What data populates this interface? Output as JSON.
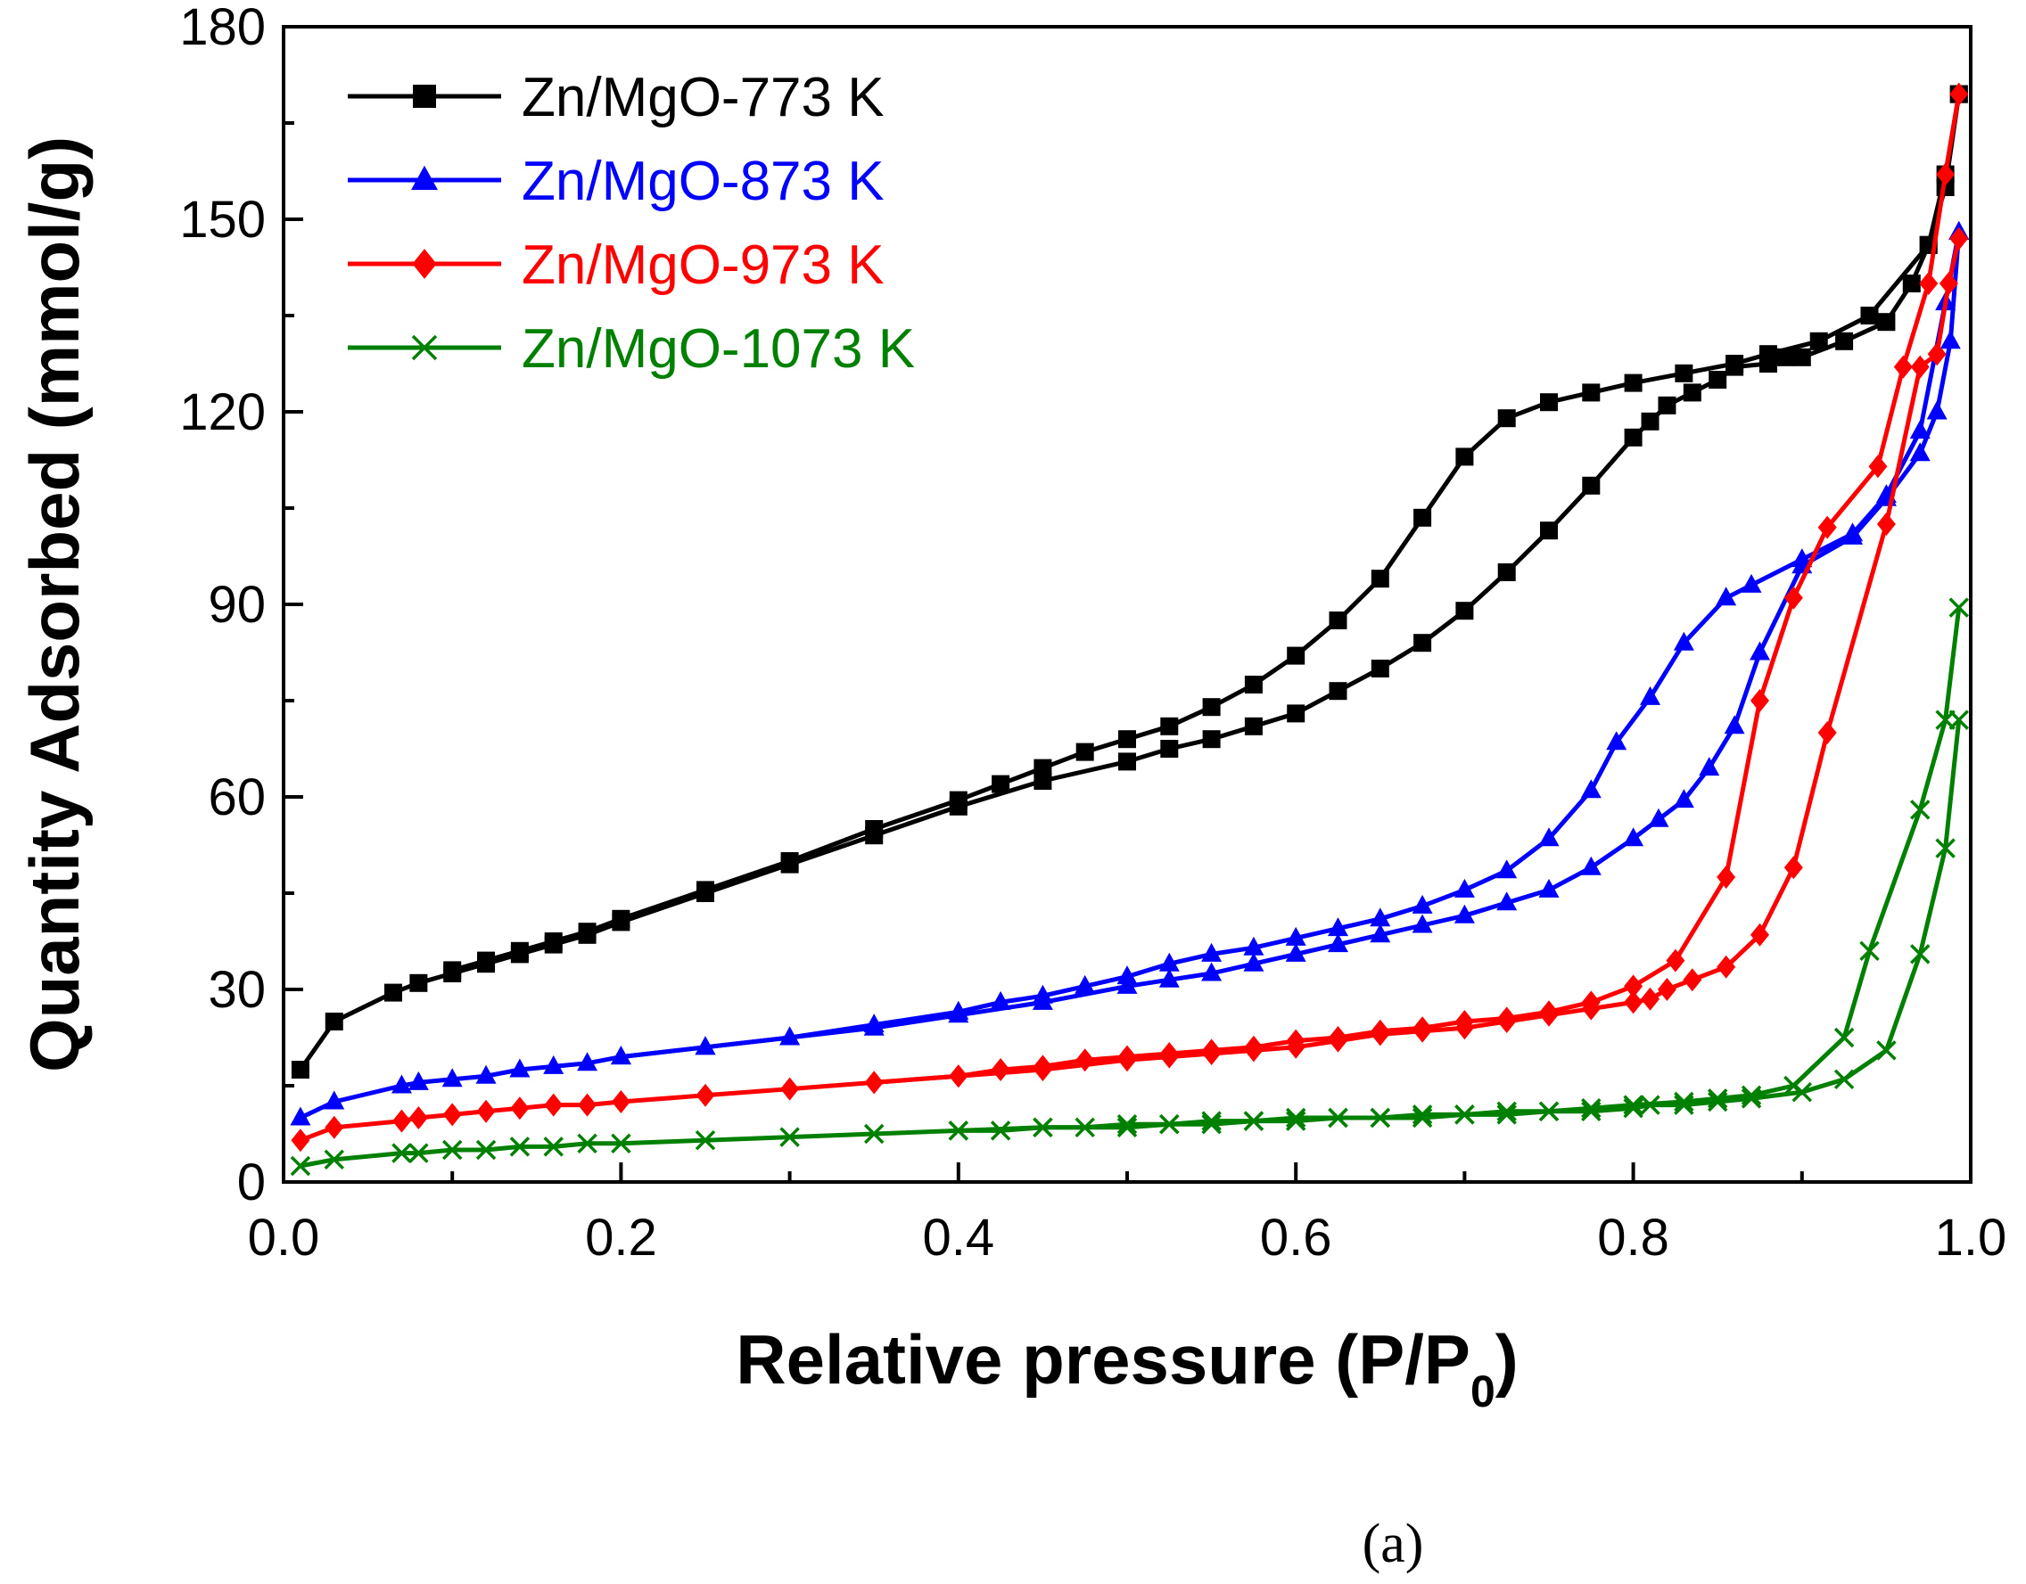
{
  "chart_data": {
    "type": "line",
    "title": "",
    "xlabel": "Relative pressure (P/P",
    "xlabel_sub": "0",
    "xlabel_end": ")",
    "ylabel": "Quantity Adsorbed (mmol/g)",
    "xlim": [
      0.0,
      1.0
    ],
    "ylim": [
      0,
      180
    ],
    "xticks": [
      "0.0",
      "0.2",
      "0.4",
      "0.6",
      "0.8",
      "1.0"
    ],
    "yticks": [
      "0",
      "30",
      "60",
      "90",
      "120",
      "150",
      "180"
    ],
    "legend_position": "top-left",
    "caption": "(a)",
    "series": [
      {
        "name": "Zn/MgO-773 K",
        "color": "#000000",
        "marker": "square",
        "adsorption": [
          [
            0.01,
            17.5
          ],
          [
            0.03,
            25
          ],
          [
            0.065,
            29.5
          ],
          [
            0.08,
            31
          ],
          [
            0.1,
            32.5
          ],
          [
            0.12,
            34
          ],
          [
            0.14,
            35.5
          ],
          [
            0.16,
            37
          ],
          [
            0.18,
            38.5
          ],
          [
            0.2,
            40.5
          ],
          [
            0.25,
            45
          ],
          [
            0.3,
            49.5
          ],
          [
            0.35,
            54
          ],
          [
            0.4,
            58.5
          ],
          [
            0.45,
            62.5
          ],
          [
            0.5,
            65.5
          ],
          [
            0.525,
            67.5
          ],
          [
            0.55,
            69
          ],
          [
            0.575,
            71
          ],
          [
            0.6,
            73
          ],
          [
            0.625,
            76.5
          ],
          [
            0.65,
            80
          ],
          [
            0.675,
            84
          ],
          [
            0.7,
            89
          ],
          [
            0.725,
            95
          ],
          [
            0.75,
            101.5
          ],
          [
            0.775,
            108.5
          ],
          [
            0.8,
            116
          ],
          [
            0.81,
            118.5
          ],
          [
            0.82,
            121
          ],
          [
            0.835,
            123
          ],
          [
            0.85,
            125
          ],
          [
            0.86,
            127
          ],
          [
            0.88,
            127.5
          ],
          [
            0.89,
            128.5
          ],
          [
            0.9,
            128.5
          ],
          [
            0.925,
            131
          ],
          [
            0.95,
            134
          ],
          [
            0.965,
            140
          ],
          [
            0.975,
            146
          ],
          [
            0.985,
            155
          ],
          [
            0.993,
            169.5
          ]
        ],
        "desorption": [
          [
            0.993,
            169.5
          ],
          [
            0.985,
            157
          ],
          [
            0.975,
            146
          ],
          [
            0.94,
            135
          ],
          [
            0.91,
            131
          ],
          [
            0.88,
            129
          ],
          [
            0.86,
            127.5
          ],
          [
            0.83,
            126
          ],
          [
            0.8,
            124.5
          ],
          [
            0.775,
            123
          ],
          [
            0.75,
            121.5
          ],
          [
            0.725,
            119
          ],
          [
            0.7,
            113
          ],
          [
            0.675,
            103.5
          ],
          [
            0.65,
            94
          ],
          [
            0.625,
            87.5
          ],
          [
            0.6,
            82
          ],
          [
            0.575,
            77.5
          ],
          [
            0.55,
            74
          ],
          [
            0.525,
            71
          ],
          [
            0.5,
            69
          ],
          [
            0.475,
            67
          ],
          [
            0.45,
            64.5
          ],
          [
            0.425,
            62
          ],
          [
            0.4,
            59.5
          ],
          [
            0.35,
            55
          ],
          [
            0.3,
            50
          ],
          [
            0.25,
            45.5
          ],
          [
            0.2,
            41
          ],
          [
            0.18,
            39
          ],
          [
            0.16,
            37.5
          ],
          [
            0.14,
            36
          ],
          [
            0.12,
            34.5
          ],
          [
            0.1,
            33
          ]
        ]
      },
      {
        "name": "Zn/MgO-873 K",
        "color": "#0000ff",
        "marker": "triangle",
        "adsorption": [
          [
            0.01,
            10
          ],
          [
            0.03,
            12.5
          ],
          [
            0.07,
            15
          ],
          [
            0.08,
            15.5
          ],
          [
            0.1,
            16
          ],
          [
            0.12,
            16.5
          ],
          [
            0.14,
            17.5
          ],
          [
            0.16,
            18
          ],
          [
            0.18,
            18.5
          ],
          [
            0.2,
            19.5
          ],
          [
            0.25,
            21
          ],
          [
            0.3,
            22.5
          ],
          [
            0.35,
            24
          ],
          [
            0.4,
            26
          ],
          [
            0.45,
            28
          ],
          [
            0.5,
            30.5
          ],
          [
            0.525,
            31.5
          ],
          [
            0.55,
            32.5
          ],
          [
            0.575,
            34
          ],
          [
            0.6,
            35.5
          ],
          [
            0.625,
            37
          ],
          [
            0.65,
            38.5
          ],
          [
            0.675,
            40
          ],
          [
            0.7,
            41.5
          ],
          [
            0.725,
            43.5
          ],
          [
            0.75,
            45.5
          ],
          [
            0.775,
            49
          ],
          [
            0.8,
            53.5
          ],
          [
            0.815,
            56.5
          ],
          [
            0.83,
            59.5
          ],
          [
            0.845,
            64.5
          ],
          [
            0.86,
            71
          ],
          [
            0.875,
            82.5
          ],
          [
            0.9,
            96
          ],
          [
            0.93,
            100.5
          ],
          [
            0.95,
            106.5
          ],
          [
            0.97,
            113.5
          ],
          [
            0.98,
            120
          ],
          [
            0.988,
            131
          ],
          [
            0.993,
            148
          ]
        ],
        "desorption": [
          [
            0.993,
            148
          ],
          [
            0.985,
            137
          ],
          [
            0.97,
            117
          ],
          [
            0.95,
            107
          ],
          [
            0.93,
            101
          ],
          [
            0.9,
            97
          ],
          [
            0.87,
            93
          ],
          [
            0.855,
            91
          ],
          [
            0.83,
            84
          ],
          [
            0.81,
            75.5
          ],
          [
            0.79,
            68.5
          ],
          [
            0.775,
            61
          ],
          [
            0.75,
            53.5
          ],
          [
            0.725,
            48.5
          ],
          [
            0.7,
            45.5
          ],
          [
            0.675,
            43
          ],
          [
            0.65,
            41
          ],
          [
            0.625,
            39.5
          ],
          [
            0.6,
            38
          ],
          [
            0.575,
            36.5
          ],
          [
            0.55,
            35.5
          ],
          [
            0.525,
            34
          ],
          [
            0.5,
            32
          ],
          [
            0.475,
            30.5
          ],
          [
            0.45,
            29
          ],
          [
            0.425,
            28
          ],
          [
            0.4,
            26.5
          ],
          [
            0.35,
            24.5
          ],
          [
            0.3,
            22.5
          ],
          [
            0.25,
            21
          ],
          [
            0.2,
            19.5
          ]
        ]
      },
      {
        "name": "Zn/MgO-973 K",
        "color": "#ff0000",
        "marker": "diamond",
        "adsorption": [
          [
            0.01,
            6.5
          ],
          [
            0.03,
            8.5
          ],
          [
            0.07,
            9.5
          ],
          [
            0.08,
            10
          ],
          [
            0.1,
            10.5
          ],
          [
            0.12,
            11
          ],
          [
            0.14,
            11.5
          ],
          [
            0.16,
            12
          ],
          [
            0.18,
            12
          ],
          [
            0.2,
            12.5
          ],
          [
            0.25,
            13.5
          ],
          [
            0.3,
            14.5
          ],
          [
            0.35,
            15.5
          ],
          [
            0.4,
            16.5
          ],
          [
            0.45,
            17.5
          ],
          [
            0.5,
            19
          ],
          [
            0.525,
            19.5
          ],
          [
            0.55,
            20
          ],
          [
            0.575,
            20.5
          ],
          [
            0.6,
            21
          ],
          [
            0.625,
            22
          ],
          [
            0.65,
            23
          ],
          [
            0.675,
            23.5
          ],
          [
            0.7,
            24
          ],
          [
            0.725,
            25
          ],
          [
            0.75,
            26
          ],
          [
            0.775,
            27
          ],
          [
            0.8,
            28
          ],
          [
            0.81,
            28.5
          ],
          [
            0.82,
            30
          ],
          [
            0.835,
            31.5
          ],
          [
            0.855,
            33.5
          ],
          [
            0.875,
            38.5
          ],
          [
            0.895,
            49
          ],
          [
            0.915,
            70
          ],
          [
            0.95,
            102.5
          ],
          [
            0.97,
            127
          ],
          [
            0.98,
            129
          ],
          [
            0.987,
            140
          ],
          [
            0.993,
            147
          ]
        ],
        "desorption": [
          [
            0.993,
            169.5
          ],
          [
            0.985,
            157
          ],
          [
            0.975,
            140
          ],
          [
            0.96,
            127
          ],
          [
            0.945,
            111.5
          ],
          [
            0.915,
            102
          ],
          [
            0.895,
            91
          ],
          [
            0.875,
            75
          ],
          [
            0.855,
            47.5
          ],
          [
            0.825,
            34.5
          ],
          [
            0.8,
            30.5
          ],
          [
            0.775,
            28
          ],
          [
            0.75,
            26.5
          ],
          [
            0.725,
            25.5
          ],
          [
            0.7,
            25
          ],
          [
            0.675,
            24
          ],
          [
            0.65,
            23.5
          ],
          [
            0.625,
            22.5
          ],
          [
            0.6,
            22
          ],
          [
            0.575,
            21
          ],
          [
            0.55,
            20.5
          ],
          [
            0.525,
            20
          ],
          [
            0.5,
            19.5
          ],
          [
            0.475,
            19
          ],
          [
            0.45,
            18
          ],
          [
            0.425,
            17.5
          ],
          [
            0.4,
            16.5
          ],
          [
            0.35,
            15.5
          ]
        ]
      },
      {
        "name": "Zn/MgO-1073 K",
        "color": "#008000",
        "marker": "x",
        "adsorption": [
          [
            0.01,
            2.5
          ],
          [
            0.03,
            3.5
          ],
          [
            0.07,
            4.5
          ],
          [
            0.08,
            4.5
          ],
          [
            0.1,
            5
          ],
          [
            0.12,
            5
          ],
          [
            0.14,
            5.5
          ],
          [
            0.16,
            5.5
          ],
          [
            0.18,
            6
          ],
          [
            0.2,
            6
          ],
          [
            0.25,
            6.5
          ],
          [
            0.3,
            7
          ],
          [
            0.35,
            7.5
          ],
          [
            0.4,
            8
          ],
          [
            0.45,
            8.5
          ],
          [
            0.5,
            8.5
          ],
          [
            0.525,
            9
          ],
          [
            0.55,
            9
          ],
          [
            0.575,
            9.5
          ],
          [
            0.6,
            9.5
          ],
          [
            0.625,
            10
          ],
          [
            0.65,
            10
          ],
          [
            0.675,
            10
          ],
          [
            0.7,
            10.5
          ],
          [
            0.725,
            10.5
          ],
          [
            0.75,
            11
          ],
          [
            0.775,
            11
          ],
          [
            0.8,
            11.5
          ],
          [
            0.81,
            12
          ],
          [
            0.83,
            12
          ],
          [
            0.85,
            12.5
          ],
          [
            0.87,
            13
          ],
          [
            0.9,
            14
          ],
          [
            0.925,
            16
          ],
          [
            0.95,
            20.5
          ],
          [
            0.97,
            35.5
          ],
          [
            0.985,
            52
          ],
          [
            0.993,
            72
          ]
        ],
        "desorption": [
          [
            0.993,
            89.5
          ],
          [
            0.985,
            72
          ],
          [
            0.97,
            58
          ],
          [
            0.94,
            36
          ],
          [
            0.925,
            22.5
          ],
          [
            0.895,
            15
          ],
          [
            0.87,
            13.5
          ],
          [
            0.85,
            13
          ],
          [
            0.83,
            12.5
          ],
          [
            0.8,
            12
          ],
          [
            0.775,
            11.5
          ],
          [
            0.75,
            11
          ],
          [
            0.725,
            11
          ],
          [
            0.7,
            10.5
          ],
          [
            0.675,
            10.5
          ],
          [
            0.65,
            10
          ],
          [
            0.625,
            10
          ],
          [
            0.6,
            10
          ],
          [
            0.575,
            9.5
          ],
          [
            0.55,
            9.5
          ],
          [
            0.525,
            9
          ],
          [
            0.5,
            9
          ],
          [
            0.475,
            8.5
          ],
          [
            0.45,
            8.5
          ],
          [
            0.425,
            8
          ],
          [
            0.4,
            8
          ]
        ]
      }
    ]
  }
}
